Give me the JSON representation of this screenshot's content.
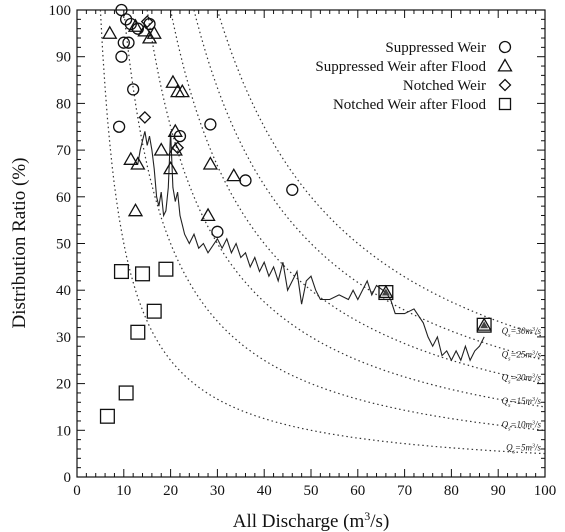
{
  "chart_data": {
    "type": "scatter",
    "xlabel_parts": [
      "All Discharge (m",
      "3",
      "/s)"
    ],
    "ylabel": "Distribution Ratio (%)",
    "xlim": [
      0,
      100
    ],
    "ylim": [
      0,
      100
    ],
    "xticks": [
      "0",
      "10",
      "20",
      "30",
      "40",
      "50",
      "60",
      "70",
      "80",
      "90",
      "100"
    ],
    "yticks": [
      "0",
      "10",
      "20",
      "30",
      "40",
      "50",
      "60",
      "70",
      "80",
      "90",
      "100"
    ],
    "grid": false,
    "legend_position": "top-right",
    "legend": [
      {
        "label": "Suppressed Weir",
        "marker": "circle"
      },
      {
        "label": "Suppressed Weir after Flood",
        "marker": "triangle"
      },
      {
        "label": "Notched Weir",
        "marker": "diamond"
      },
      {
        "label": "Notched Weir after Flood",
        "marker": "square"
      }
    ],
    "series": [
      {
        "name": "Suppressed Weir",
        "marker": "circle",
        "points": [
          [
            9.5,
            100
          ],
          [
            10.5,
            98
          ],
          [
            11.5,
            97
          ],
          [
            13,
            96
          ],
          [
            15.5,
            97
          ],
          [
            10,
            93
          ],
          [
            11,
            93
          ],
          [
            9.5,
            90
          ],
          [
            12,
            83
          ],
          [
            9,
            75
          ],
          [
            22,
            73
          ],
          [
            28.5,
            75.5
          ],
          [
            36,
            63.5
          ],
          [
            46,
            61.5
          ],
          [
            30,
            52.5
          ]
        ]
      },
      {
        "name": "Suppressed Weir after Flood",
        "marker": "triangle",
        "points": [
          [
            7,
            95
          ],
          [
            12.5,
            96.5
          ],
          [
            14.5,
            95.5
          ],
          [
            16.5,
            95
          ],
          [
            15.5,
            94
          ],
          [
            20.5,
            84.5
          ],
          [
            21.5,
            82.5
          ],
          [
            22.5,
            82.5
          ],
          [
            21,
            74
          ],
          [
            18,
            70
          ],
          [
            21,
            70
          ],
          [
            11.5,
            68
          ],
          [
            13,
            67
          ],
          [
            20,
            66
          ],
          [
            28.5,
            67
          ],
          [
            33.5,
            64.5
          ],
          [
            12.5,
            57
          ],
          [
            28,
            56
          ],
          [
            66,
            39.5
          ],
          [
            87,
            32.5
          ]
        ]
      },
      {
        "name": "Notched Weir",
        "marker": "diamond",
        "points": [
          [
            15,
            97.5
          ],
          [
            14.5,
            77
          ],
          [
            21.5,
            70.5
          ]
        ]
      },
      {
        "name": "Notched Weir after Flood",
        "marker": "square",
        "points": [
          [
            9.5,
            44
          ],
          [
            14,
            43.5
          ],
          [
            19,
            44.5
          ],
          [
            16.5,
            35.5
          ],
          [
            13,
            31
          ],
          [
            10.5,
            18
          ],
          [
            6.5,
            13
          ],
          [
            66,
            39.5
          ],
          [
            87,
            32.5
          ]
        ]
      }
    ],
    "trend_line": [
      [
        13,
        67
      ],
      [
        13.5,
        70
      ],
      [
        14,
        72
      ],
      [
        14.5,
        74
      ],
      [
        15,
        71
      ],
      [
        15.5,
        73
      ],
      [
        16,
        70
      ],
      [
        16.5,
        66
      ],
      [
        17,
        60
      ],
      [
        17.5,
        58
      ],
      [
        18,
        61
      ],
      [
        18.5,
        56
      ],
      [
        19,
        57
      ],
      [
        19.5,
        62
      ],
      [
        20,
        74
      ],
      [
        20.5,
        62
      ],
      [
        21,
        59
      ],
      [
        21.5,
        61
      ],
      [
        22,
        56
      ],
      [
        22.5,
        54
      ],
      [
        23,
        52
      ],
      [
        24,
        50
      ],
      [
        25,
        52
      ],
      [
        26,
        49
      ],
      [
        27,
        50
      ],
      [
        28,
        48
      ],
      [
        30,
        51
      ],
      [
        31,
        49
      ],
      [
        32,
        51
      ],
      [
        33,
        48
      ],
      [
        34,
        50
      ],
      [
        35,
        47
      ],
      [
        36,
        48
      ],
      [
        37,
        45
      ],
      [
        38,
        47
      ],
      [
        39,
        44
      ],
      [
        40,
        46
      ],
      [
        41,
        43
      ],
      [
        42,
        45
      ],
      [
        43,
        42
      ],
      [
        44,
        46
      ],
      [
        45,
        40
      ],
      [
        46,
        42
      ],
      [
        47,
        44
      ],
      [
        48,
        37
      ],
      [
        49,
        42
      ],
      [
        50,
        43
      ],
      [
        51,
        40
      ],
      [
        52,
        38
      ],
      [
        54,
        38
      ],
      [
        56,
        39
      ],
      [
        58,
        38
      ],
      [
        59,
        40
      ],
      [
        60,
        38
      ],
      [
        62,
        42
      ],
      [
        63,
        39
      ],
      [
        64,
        41
      ],
      [
        66,
        39.5
      ],
      [
        67,
        38
      ],
      [
        68,
        35
      ],
      [
        70,
        35
      ],
      [
        72,
        36
      ],
      [
        74,
        33
      ],
      [
        75,
        30
      ],
      [
        76,
        28
      ],
      [
        77,
        30
      ],
      [
        78,
        26
      ],
      [
        79,
        27
      ],
      [
        80,
        25
      ],
      [
        81,
        27
      ],
      [
        82,
        25
      ],
      [
        83,
        28
      ],
      [
        84,
        25
      ],
      [
        85,
        27
      ],
      [
        86,
        28
      ],
      [
        87,
        30
      ]
    ],
    "iso_discharge_curves": [
      {
        "label_parts": [
          "Q",
          "s",
          "=30m",
          "3",
          "/s"
        ],
        "q": 30
      },
      {
        "label_parts": [
          "Q",
          "s",
          "=25m",
          "3",
          "/s"
        ],
        "q": 25
      },
      {
        "label_parts": [
          "Q",
          "s",
          "=20m",
          "3",
          "/s"
        ],
        "q": 20
      },
      {
        "label_parts": [
          "Q",
          "s",
          "=15m",
          "3",
          "/s"
        ],
        "q": 15
      },
      {
        "label_parts": [
          "Q",
          "s",
          "=10m",
          "3",
          "/s"
        ],
        "q": 10
      },
      {
        "label_parts": [
          "Q",
          "s",
          "=5m",
          "3",
          "/s"
        ],
        "q": 5
      }
    ]
  }
}
